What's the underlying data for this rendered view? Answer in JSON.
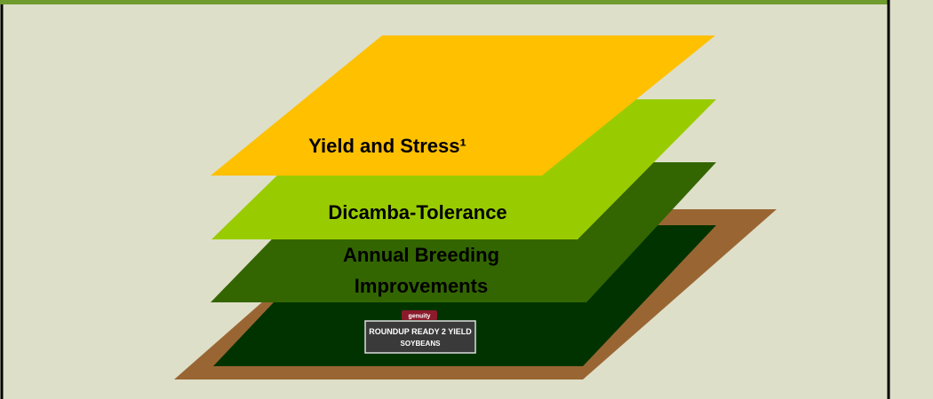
{
  "layers": [
    {
      "label": "Yield and Stress¹"
    },
    {
      "label": "Dicamba-Tolerance"
    },
    {
      "label_lines": [
        "Annual Breeding",
        "Improvements"
      ]
    }
  ],
  "logo": {
    "brand": "genuity",
    "lines": [
      "ROUNDUP READY 2 YIELD",
      "SOYBEANS"
    ]
  }
}
